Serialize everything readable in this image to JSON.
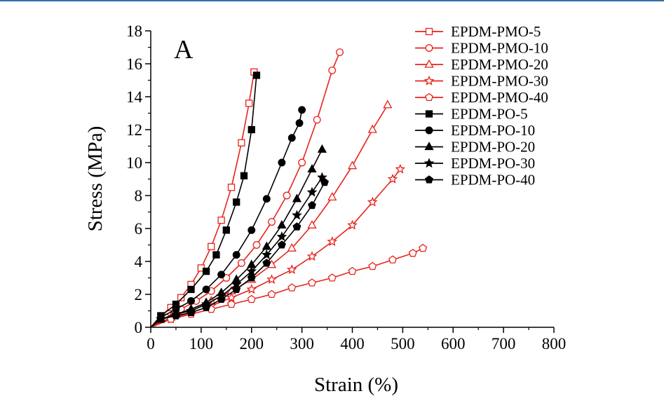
{
  "panel_label": "A",
  "chart_data": {
    "type": "line",
    "title": "",
    "xlabel": "Strain (%)",
    "ylabel": "Stress (MPa)",
    "xlim": [
      0,
      800
    ],
    "ylim": [
      0,
      18
    ],
    "xticks": [
      0,
      100,
      200,
      300,
      400,
      500,
      600,
      700,
      800
    ],
    "yticks": [
      0,
      2,
      4,
      6,
      8,
      10,
      12,
      14,
      16,
      18
    ],
    "grid": false,
    "legend_position": "top-right",
    "series": [
      {
        "name": "EPDM-PMO-5",
        "color": "#e8231b",
        "marker": "square",
        "filled": false,
        "x": [
          0,
          20,
          40,
          60,
          80,
          100,
          120,
          140,
          160,
          180,
          195,
          205
        ],
        "y": [
          0,
          0.7,
          1.2,
          1.8,
          2.6,
          3.6,
          4.9,
          6.5,
          8.5,
          11.2,
          13.6,
          15.5
        ]
      },
      {
        "name": "EPDM-PMO-10",
        "color": "#e8231b",
        "marker": "circle",
        "filled": false,
        "x": [
          0,
          30,
          60,
          90,
          120,
          150,
          180,
          210,
          240,
          270,
          300,
          330,
          360,
          375
        ],
        "y": [
          0,
          0.6,
          1.1,
          1.6,
          2.2,
          3.0,
          3.9,
          5.0,
          6.4,
          8.0,
          10.0,
          12.6,
          15.6,
          16.7
        ]
      },
      {
        "name": "EPDM-PMO-20",
        "color": "#e8231b",
        "marker": "triangle",
        "filled": false,
        "x": [
          0,
          40,
          80,
          120,
          160,
          200,
          240,
          280,
          320,
          360,
          400,
          440,
          470
        ],
        "y": [
          0,
          0.6,
          1.1,
          1.6,
          2.2,
          2.9,
          3.8,
          4.8,
          6.2,
          7.9,
          9.8,
          12.0,
          13.5
        ]
      },
      {
        "name": "EPDM-PMO-30",
        "color": "#e8231b",
        "marker": "star",
        "filled": false,
        "x": [
          0,
          40,
          80,
          120,
          160,
          200,
          240,
          280,
          320,
          360,
          400,
          440,
          480,
          495
        ],
        "y": [
          0,
          0.5,
          0.9,
          1.3,
          1.8,
          2.3,
          2.9,
          3.5,
          4.3,
          5.2,
          6.2,
          7.6,
          9.0,
          9.6
        ]
      },
      {
        "name": "EPDM-PMO-40",
        "color": "#e8231b",
        "marker": "pentagon",
        "filled": false,
        "x": [
          0,
          40,
          80,
          120,
          160,
          200,
          240,
          280,
          320,
          360,
          400,
          440,
          480,
          520,
          540
        ],
        "y": [
          0,
          0.5,
          0.8,
          1.1,
          1.4,
          1.7,
          2.0,
          2.4,
          2.7,
          3.0,
          3.4,
          3.7,
          4.1,
          4.5,
          4.8
        ]
      },
      {
        "name": "EPDM-PO-5",
        "color": "#000000",
        "marker": "square",
        "filled": true,
        "x": [
          0,
          20,
          50,
          80,
          110,
          130,
          150,
          170,
          185,
          200,
          210
        ],
        "y": [
          0,
          0.7,
          1.4,
          2.3,
          3.4,
          4.4,
          5.9,
          7.6,
          9.2,
          12.0,
          15.3
        ]
      },
      {
        "name": "EPDM-PO-10",
        "color": "#000000",
        "marker": "circle",
        "filled": true,
        "x": [
          0,
          20,
          50,
          80,
          110,
          140,
          170,
          200,
          230,
          260,
          280,
          295,
          300
        ],
        "y": [
          0,
          0.6,
          1.1,
          1.6,
          2.3,
          3.2,
          4.4,
          5.9,
          7.8,
          10.0,
          11.5,
          12.4,
          13.2
        ]
      },
      {
        "name": "EPDM-PO-20",
        "color": "#000000",
        "marker": "triangle",
        "filled": true,
        "x": [
          0,
          20,
          50,
          80,
          110,
          140,
          170,
          200,
          230,
          260,
          290,
          320,
          340
        ],
        "y": [
          0,
          0.5,
          0.8,
          1.1,
          1.5,
          2.1,
          2.9,
          3.8,
          4.9,
          6.2,
          7.8,
          9.6,
          10.8
        ]
      },
      {
        "name": "EPDM-PO-30",
        "color": "#000000",
        "marker": "star",
        "filled": true,
        "x": [
          0,
          20,
          50,
          80,
          110,
          140,
          170,
          200,
          230,
          260,
          290,
          320,
          340
        ],
        "y": [
          0,
          0.5,
          0.8,
          1.0,
          1.4,
          1.9,
          2.6,
          3.4,
          4.4,
          5.5,
          6.8,
          8.2,
          9.1
        ]
      },
      {
        "name": "EPDM-PO-40",
        "color": "#000000",
        "marker": "pentagon",
        "filled": true,
        "x": [
          0,
          20,
          50,
          80,
          110,
          140,
          170,
          200,
          230,
          260,
          290,
          320,
          345
        ],
        "y": [
          0,
          0.5,
          0.7,
          0.9,
          1.2,
          1.7,
          2.3,
          3.0,
          3.9,
          5.0,
          6.1,
          7.4,
          8.8
        ]
      }
    ]
  }
}
